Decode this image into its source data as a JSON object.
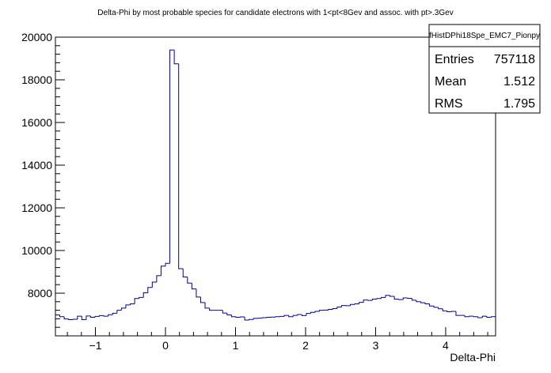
{
  "chart_data": {
    "type": "histogram",
    "title": "Delta-Phi by most probable species for candidate electrons with 1<pt<8Gev and assoc. with pt>.3Gev",
    "xlabel": "Delta-Phi",
    "ylabel": "",
    "xlim": [
      -1.5708,
      4.7124
    ],
    "ylim": [
      6000,
      20000
    ],
    "x_ticks": [
      -1,
      0,
      1,
      2,
      3,
      4
    ],
    "x_tick_labels": [
      "−1",
      "0",
      "1",
      "2",
      "3",
      "4"
    ],
    "y_ticks": [
      8000,
      10000,
      12000,
      14000,
      16000,
      18000,
      20000
    ],
    "y_tick_labels": [
      "8000",
      "10000",
      "12000",
      "14000",
      "16000",
      "18000",
      "20000"
    ],
    "line_color": "#000099",
    "bins": 100,
    "values": [
      6980,
      6900,
      6790,
      6760,
      6780,
      6920,
      6760,
      6930,
      6870,
      6910,
      6950,
      6920,
      6990,
      7060,
      7200,
      7300,
      7450,
      7500,
      7750,
      7800,
      8020,
      8270,
      8520,
      8820,
      9270,
      9400,
      19400,
      18750,
      9150,
      8760,
      8470,
      8200,
      7820,
      7560,
      7300,
      7200,
      7200,
      7200,
      7070,
      6980,
      6900,
      6870,
      6890,
      6740,
      6770,
      6820,
      6830,
      6850,
      6870,
      6880,
      6900,
      6910,
      6960,
      6900,
      6960,
      7000,
      6950,
      7050,
      7100,
      7150,
      7200,
      7210,
      7240,
      7280,
      7350,
      7420,
      7410,
      7470,
      7500,
      7570,
      7680,
      7660,
      7720,
      7750,
      7800,
      7900,
      7850,
      7720,
      7700,
      7780,
      7760,
      7670,
      7600,
      7550,
      7500,
      7400,
      7340,
      7270,
      7170,
      7130,
      7150,
      6960,
      6960,
      6900,
      6920,
      6900,
      6850,
      6920,
      6870,
      6900
    ]
  },
  "stats_box": {
    "name": "fHistDPhi18Spe_EMC7_Pionpy",
    "rows": [
      {
        "label": "Entries",
        "value": "757118"
      },
      {
        "label": "Mean",
        "value": "1.512"
      },
      {
        "label": "RMS",
        "value": "1.795"
      }
    ]
  }
}
